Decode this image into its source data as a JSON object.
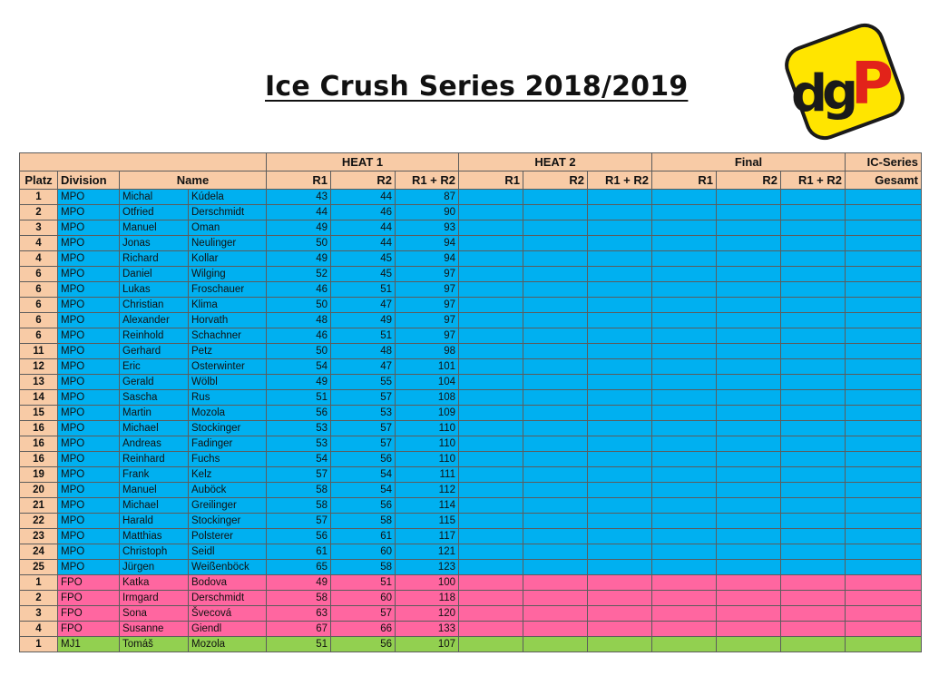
{
  "title": "Ice Crush Series 2018/2019",
  "logo": {
    "text_d": "d",
    "text_g": "g",
    "text_p": "P"
  },
  "colors": {
    "header": "#f8cba6",
    "MPO": "#00b0f0",
    "FPO": "#ff66a0",
    "MJ1": "#92d050",
    "logo_yellow": "#ffe500",
    "logo_red": "#e2231a"
  },
  "groups": {
    "heat1": "HEAT 1",
    "heat2": "HEAT 2",
    "final": "Final",
    "ic": "IC-Series"
  },
  "columns": {
    "platz": "Platz",
    "division": "Division",
    "name": "Name",
    "r1": "R1",
    "r2": "R2",
    "sum": "R1 + R2",
    "gesamt": "Gesamt"
  },
  "rows": [
    {
      "platz": "1",
      "division": "MPO",
      "first": "Michal",
      "last": "Kúdela",
      "r1": "43",
      "r2": "44",
      "sum": "87"
    },
    {
      "platz": "2",
      "division": "MPO",
      "first": "Otfried",
      "last": "Derschmidt",
      "r1": "44",
      "r2": "46",
      "sum": "90"
    },
    {
      "platz": "3",
      "division": "MPO",
      "first": "Manuel",
      "last": "Oman",
      "r1": "49",
      "r2": "44",
      "sum": "93"
    },
    {
      "platz": "4",
      "division": "MPO",
      "first": "Jonas",
      "last": "Neulinger",
      "r1": "50",
      "r2": "44",
      "sum": "94"
    },
    {
      "platz": "4",
      "division": "MPO",
      "first": "Richard",
      "last": "Kollar",
      "r1": "49",
      "r2": "45",
      "sum": "94"
    },
    {
      "platz": "6",
      "division": "MPO",
      "first": "Daniel",
      "last": "Wilging",
      "r1": "52",
      "r2": "45",
      "sum": "97"
    },
    {
      "platz": "6",
      "division": "MPO",
      "first": "Lukas",
      "last": "Froschauer",
      "r1": "46",
      "r2": "51",
      "sum": "97"
    },
    {
      "platz": "6",
      "division": "MPO",
      "first": "Christian",
      "last": "Klima",
      "r1": "50",
      "r2": "47",
      "sum": "97"
    },
    {
      "platz": "6",
      "division": "MPO",
      "first": "Alexander",
      "last": "Horvath",
      "r1": "48",
      "r2": "49",
      "sum": "97"
    },
    {
      "platz": "6",
      "division": "MPO",
      "first": "Reinhold",
      "last": "Schachner",
      "r1": "46",
      "r2": "51",
      "sum": "97"
    },
    {
      "platz": "11",
      "division": "MPO",
      "first": "Gerhard",
      "last": "Petz",
      "r1": "50",
      "r2": "48",
      "sum": "98"
    },
    {
      "platz": "12",
      "division": "MPO",
      "first": "Eric",
      "last": "Osterwinter",
      "r1": "54",
      "r2": "47",
      "sum": "101"
    },
    {
      "platz": "13",
      "division": "MPO",
      "first": "Gerald",
      "last": "Wölbl",
      "r1": "49",
      "r2": "55",
      "sum": "104"
    },
    {
      "platz": "14",
      "division": "MPO",
      "first": "Sascha",
      "last": "Rus",
      "r1": "51",
      "r2": "57",
      "sum": "108"
    },
    {
      "platz": "15",
      "division": "MPO",
      "first": "Martin",
      "last": "Mozola",
      "r1": "56",
      "r2": "53",
      "sum": "109"
    },
    {
      "platz": "16",
      "division": "MPO",
      "first": "Michael",
      "last": "Stockinger",
      "r1": "53",
      "r2": "57",
      "sum": "110"
    },
    {
      "platz": "16",
      "division": "MPO",
      "first": "Andreas",
      "last": "Fadinger",
      "r1": "53",
      "r2": "57",
      "sum": "110"
    },
    {
      "platz": "16",
      "division": "MPO",
      "first": "Reinhard",
      "last": "Fuchs",
      "r1": "54",
      "r2": "56",
      "sum": "110"
    },
    {
      "platz": "19",
      "division": "MPO",
      "first": "Frank",
      "last": "Kelz",
      "r1": "57",
      "r2": "54",
      "sum": "111"
    },
    {
      "platz": "20",
      "division": "MPO",
      "first": "Manuel",
      "last": "Auböck",
      "r1": "58",
      "r2": "54",
      "sum": "112"
    },
    {
      "platz": "21",
      "division": "MPO",
      "first": "Michael",
      "last": "Greilinger",
      "r1": "58",
      "r2": "56",
      "sum": "114"
    },
    {
      "platz": "22",
      "division": "MPO",
      "first": "Harald",
      "last": "Stockinger",
      "r1": "57",
      "r2": "58",
      "sum": "115"
    },
    {
      "platz": "23",
      "division": "MPO",
      "first": "Matthias",
      "last": "Polsterer",
      "r1": "56",
      "r2": "61",
      "sum": "117"
    },
    {
      "platz": "24",
      "division": "MPO",
      "first": "Christoph",
      "last": "Seidl",
      "r1": "61",
      "r2": "60",
      "sum": "121"
    },
    {
      "platz": "25",
      "division": "MPO",
      "first": "Jürgen",
      "last": "Weißenböck",
      "r1": "65",
      "r2": "58",
      "sum": "123"
    },
    {
      "platz": "1",
      "division": "FPO",
      "first": "Katka",
      "last": "Bodova",
      "r1": "49",
      "r2": "51",
      "sum": "100"
    },
    {
      "platz": "2",
      "division": "FPO",
      "first": "Irmgard",
      "last": "Derschmidt",
      "r1": "58",
      "r2": "60",
      "sum": "118"
    },
    {
      "platz": "3",
      "division": "FPO",
      "first": "Sona",
      "last": "Švecová",
      "r1": "63",
      "r2": "57",
      "sum": "120"
    },
    {
      "platz": "4",
      "division": "FPO",
      "first": "Susanne",
      "last": "Giendl",
      "r1": "67",
      "r2": "66",
      "sum": "133"
    },
    {
      "platz": "1",
      "division": "MJ1",
      "first": "Tomáš",
      "last": "Mozola",
      "r1": "51",
      "r2": "56",
      "sum": "107"
    }
  ]
}
